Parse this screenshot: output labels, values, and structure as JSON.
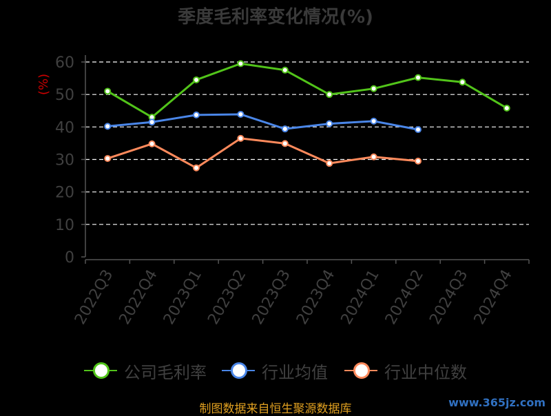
{
  "chart_data": {
    "type": "line",
    "title": "季度毛利率变化情况(%)",
    "ylabel": "(%)",
    "categories": [
      "2022Q3",
      "2022Q4",
      "2023Q1",
      "2023Q2",
      "2023Q3",
      "2023Q4",
      "2024Q1",
      "2024Q2",
      "2024Q3",
      "2024Q4"
    ],
    "ylim": [
      0,
      60
    ],
    "yticks": [
      0,
      10,
      20,
      30,
      40,
      50,
      60
    ],
    "grid": true,
    "legend_position": "bottom",
    "series": [
      {
        "name": "公司毛利率",
        "color": "#52c41a",
        "values": [
          51,
          43,
          54.5,
          59.5,
          57.5,
          50,
          51.8,
          55.2,
          53.8,
          45.8
        ]
      },
      {
        "name": "行业均值",
        "color": "#4a86e8",
        "values": [
          40.2,
          41.5,
          43.7,
          43.9,
          39.4,
          41,
          41.8,
          39.2,
          null,
          null
        ]
      },
      {
        "name": "行业中位数",
        "color": "#ff8a5c",
        "values": [
          30.3,
          34.8,
          27.4,
          36.5,
          34.9,
          28.8,
          30.8,
          29.5,
          null,
          null
        ]
      }
    ]
  },
  "source_text": "制图数据来自恒生聚源数据库",
  "watermark_text": "www.365jz.com"
}
